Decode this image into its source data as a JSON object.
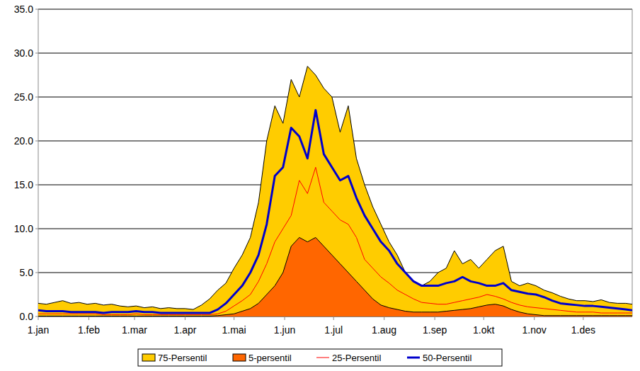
{
  "chart_data": {
    "type": "area",
    "x": [
      1,
      6,
      11,
      16,
      21,
      26,
      31,
      36,
      41,
      46,
      51,
      56,
      61,
      66,
      71,
      76,
      81,
      86,
      91,
      96,
      101,
      106,
      111,
      116,
      121,
      126,
      131,
      136,
      141,
      146,
      151,
      156,
      161,
      166,
      171,
      176,
      181,
      186,
      191,
      196,
      201,
      206,
      211,
      216,
      221,
      226,
      231,
      236,
      241,
      246,
      251,
      256,
      261,
      266,
      271,
      276,
      281,
      286,
      291,
      296,
      301,
      306,
      311,
      316,
      321,
      326,
      331,
      336,
      341,
      346,
      351,
      356,
      361,
      365
    ],
    "xlim": [
      1,
      365
    ],
    "xticks": [
      {
        "value": 1,
        "label": "1.jan"
      },
      {
        "value": 32,
        "label": "1.feb"
      },
      {
        "value": 60,
        "label": "1.mar"
      },
      {
        "value": 91,
        "label": "1.apr"
      },
      {
        "value": 121,
        "label": "1.mai"
      },
      {
        "value": 152,
        "label": "1.jun"
      },
      {
        "value": 182,
        "label": "1.jul"
      },
      {
        "value": 213,
        "label": "1.aug"
      },
      {
        "value": 244,
        "label": "1.sep"
      },
      {
        "value": 274,
        "label": "1.okt"
      },
      {
        "value": 305,
        "label": "1.nov"
      },
      {
        "value": 335,
        "label": "1.des"
      }
    ],
    "ylim": [
      0,
      35
    ],
    "yticks": [
      {
        "value": 0,
        "label": "0.0"
      },
      {
        "value": 5,
        "label": "5.0"
      },
      {
        "value": 10,
        "label": "10.0"
      },
      {
        "value": 15,
        "label": "15.0"
      },
      {
        "value": 20,
        "label": "20.0"
      },
      {
        "value": 25,
        "label": "25.0"
      },
      {
        "value": 30,
        "label": "30.0"
      },
      {
        "value": 35,
        "label": "35.0"
      }
    ],
    "grid": true,
    "legend": "bottom",
    "series": [
      {
        "name": "75-Persentil",
        "type": "area",
        "color": "#ffcc00",
        "values": [
          1.5,
          1.4,
          1.6,
          1.8,
          1.5,
          1.6,
          1.4,
          1.5,
          1.3,
          1.4,
          1.2,
          1.1,
          1.2,
          1.0,
          1.1,
          0.9,
          1.0,
          0.9,
          0.9,
          0.8,
          1.3,
          2.0,
          3.0,
          3.8,
          5.5,
          7.0,
          9.0,
          13.0,
          20.0,
          24.0,
          22.0,
          27.0,
          25.0,
          28.5,
          27.5,
          26.0,
          25.0,
          21.0,
          24.0,
          18.0,
          15.0,
          12.5,
          10.5,
          8.5,
          7.0,
          5.0,
          4.0,
          3.5,
          4.0,
          5.0,
          5.5,
          7.5,
          6.0,
          6.5,
          5.5,
          6.5,
          7.5,
          8.0,
          4.0,
          3.5,
          3.8,
          3.5,
          3.0,
          2.7,
          2.3,
          2.0,
          1.8,
          1.8,
          1.7,
          1.9,
          1.6,
          1.5,
          1.5,
          1.4
        ]
      },
      {
        "name": "5-persentil",
        "type": "area",
        "color": "#ff6600",
        "values": [
          0.05,
          0.05,
          0.05,
          0.05,
          0.05,
          0.05,
          0.05,
          0.05,
          0.05,
          0.05,
          0.05,
          0.05,
          0.05,
          0.05,
          0.05,
          0.05,
          0.05,
          0.05,
          0.05,
          0.05,
          0.05,
          0.05,
          0.1,
          0.2,
          0.3,
          0.6,
          0.9,
          1.5,
          2.5,
          3.5,
          5.0,
          8.0,
          9.0,
          8.5,
          9.0,
          8.0,
          7.0,
          6.0,
          5.0,
          4.0,
          3.0,
          2.0,
          1.3,
          1.0,
          0.8,
          0.6,
          0.5,
          0.5,
          0.5,
          0.5,
          0.6,
          0.7,
          0.8,
          0.9,
          1.1,
          1.3,
          1.4,
          1.2,
          0.8,
          0.5,
          0.3,
          0.2,
          0.1,
          0.1,
          0.1,
          0.1,
          0.1,
          0.1,
          0.1,
          0.1,
          0.1,
          0.1,
          0.1,
          0.1
        ]
      },
      {
        "name": "25-Persentil",
        "type": "line",
        "color": "#ff0000",
        "values": [
          0.3,
          0.3,
          0.3,
          0.3,
          0.3,
          0.3,
          0.3,
          0.3,
          0.2,
          0.2,
          0.2,
          0.2,
          0.3,
          0.2,
          0.2,
          0.2,
          0.2,
          0.2,
          0.2,
          0.2,
          0.2,
          0.2,
          0.3,
          0.6,
          1.2,
          1.8,
          2.5,
          4.0,
          6.0,
          8.5,
          10.0,
          11.5,
          15.5,
          14.0,
          17.0,
          13.0,
          12.0,
          11.0,
          10.5,
          9.0,
          6.5,
          5.5,
          4.5,
          3.8,
          3.0,
          2.5,
          2.0,
          1.6,
          1.5,
          1.4,
          1.4,
          1.6,
          1.8,
          2.0,
          2.2,
          2.5,
          2.3,
          2.0,
          1.6,
          1.3,
          1.1,
          1.0,
          0.9,
          0.8,
          0.7,
          0.6,
          0.5,
          0.5,
          0.5,
          0.4,
          0.4,
          0.4,
          0.4,
          0.4
        ]
      },
      {
        "name": "50-Persentil",
        "type": "line",
        "color": "#0000cc",
        "values": [
          0.7,
          0.6,
          0.6,
          0.6,
          0.5,
          0.5,
          0.5,
          0.5,
          0.4,
          0.5,
          0.5,
          0.5,
          0.6,
          0.5,
          0.5,
          0.4,
          0.4,
          0.4,
          0.4,
          0.4,
          0.4,
          0.4,
          0.8,
          1.5,
          2.5,
          3.5,
          5.0,
          7.0,
          10.5,
          16.0,
          17.0,
          21.5,
          20.5,
          18.0,
          23.5,
          18.5,
          17.0,
          15.5,
          16.0,
          13.5,
          11.5,
          10.0,
          8.5,
          7.5,
          6.0,
          5.0,
          4.0,
          3.5,
          3.5,
          3.5,
          3.8,
          4.0,
          4.5,
          4.0,
          3.8,
          3.5,
          3.5,
          3.8,
          3.0,
          2.8,
          2.6,
          2.5,
          2.2,
          1.8,
          1.5,
          1.4,
          1.3,
          1.2,
          1.2,
          1.1,
          1.0,
          0.9,
          0.8,
          0.7
        ]
      }
    ]
  }
}
